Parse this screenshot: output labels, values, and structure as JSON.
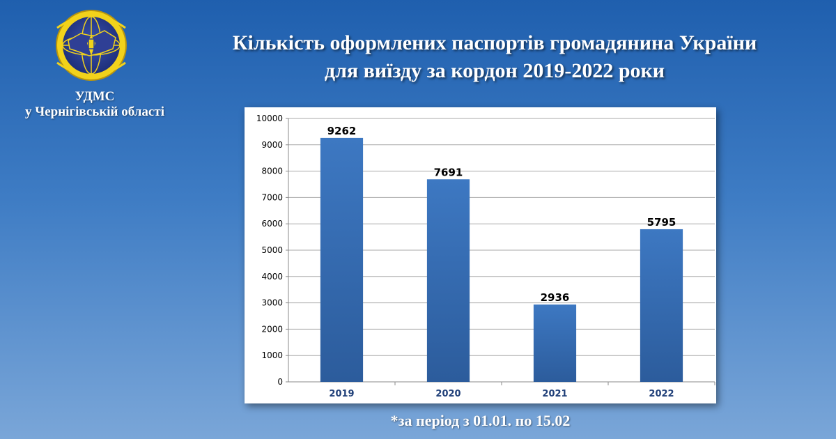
{
  "header": {
    "org_line1": "УДМС",
    "org_line2": "у Чернігівській області",
    "title_line1": "Кількість оформлених паспортів громадянина України",
    "title_line2": "для виїзду за кордон 2019-2022 роки"
  },
  "logo": {
    "icon": "state-migration-service-emblem-icon"
  },
  "footnote": "*за період з 01.01. по 15.02",
  "colors": {
    "background_top": "#1f5fae",
    "background_bottom": "#7aa6d8",
    "bar": "#3a72b8",
    "bar_dark": "#2b5a96",
    "logo_ring": "#f2d21b",
    "logo_inner": "#2a3f93"
  },
  "chart_data": {
    "type": "bar",
    "categories": [
      "2019",
      "2020",
      "2021",
      "2022"
    ],
    "values": [
      9262,
      7691,
      2936,
      5795
    ],
    "data_labels": [
      "9262",
      "7691",
      "2936",
      "5795"
    ],
    "ylim": [
      0,
      10000
    ],
    "yticks": [
      "0",
      "1000",
      "2000",
      "3000",
      "4000",
      "5000",
      "6000",
      "7000",
      "8000",
      "9000",
      "10000"
    ],
    "grid": true,
    "legend": "none",
    "xlabel": "",
    "ylabel": ""
  }
}
